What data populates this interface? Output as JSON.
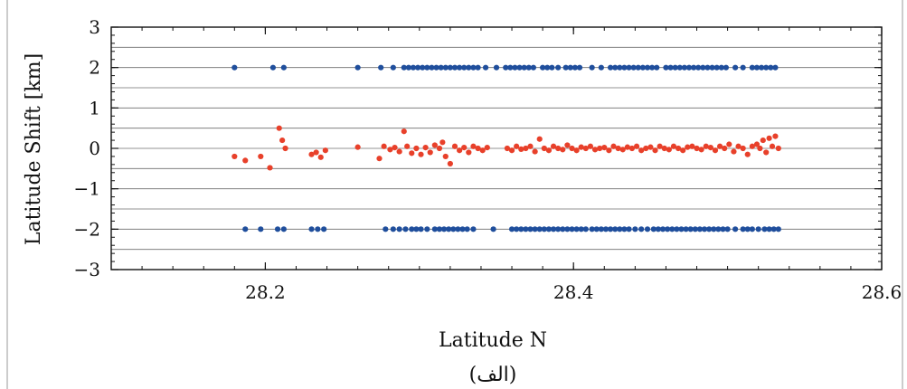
{
  "chart_data": {
    "type": "scatter",
    "title": "",
    "caption": "(الف)",
    "xlabel": "Latitude N",
    "ylabel": "Latitude Shift [km]",
    "xlim": [
      28.1,
      28.6
    ],
    "ylim": [
      -3,
      3
    ],
    "x_ticks": [
      28.2,
      28.4,
      28.6
    ],
    "x_tick_labels": [
      "28.2",
      "28.4",
      "28.6"
    ],
    "y_ticks": [
      -3,
      -2,
      -1,
      0,
      1,
      2,
      3
    ],
    "y_tick_labels": [
      "−3",
      "−2",
      "−1",
      "0",
      "1",
      "2",
      "3"
    ],
    "grid": true,
    "colors": {
      "blue": "#1f4e9c",
      "red": "#e8402a"
    },
    "series": [
      {
        "color": "#1f4e9c",
        "x": [
          28.18,
          28.205,
          28.212,
          28.26,
          28.275,
          28.283,
          28.29,
          28.293,
          28.296,
          28.299,
          28.302,
          28.305,
          28.308,
          28.311,
          28.314,
          28.317,
          28.32,
          28.323,
          28.326,
          28.329,
          28.332,
          28.335,
          28.338,
          28.343,
          28.35,
          28.356,
          28.359,
          28.362,
          28.365,
          28.368,
          28.371,
          28.374,
          28.38,
          28.383,
          28.386,
          28.39,
          28.395,
          28.398,
          28.401,
          28.404,
          28.412,
          28.418,
          28.424,
          28.427,
          28.43,
          28.433,
          28.436,
          28.439,
          28.442,
          28.445,
          28.448,
          28.451,
          28.454,
          28.46,
          28.463,
          28.466,
          28.469,
          28.472,
          28.475,
          28.478,
          28.481,
          28.484,
          28.487,
          28.49,
          28.493,
          28.496,
          28.499,
          28.505,
          28.51,
          28.516,
          28.519,
          28.522,
          28.525,
          28.528,
          28.531
        ],
        "y": [
          2,
          2,
          2,
          2,
          2,
          2,
          2,
          2,
          2,
          2,
          2,
          2,
          2,
          2,
          2,
          2,
          2,
          2,
          2,
          2,
          2,
          2,
          2,
          2,
          2,
          2,
          2,
          2,
          2,
          2,
          2,
          2,
          2,
          2,
          2,
          2,
          2,
          2,
          2,
          2,
          2,
          2,
          2,
          2,
          2,
          2,
          2,
          2,
          2,
          2,
          2,
          2,
          2,
          2,
          2,
          2,
          2,
          2,
          2,
          2,
          2,
          2,
          2,
          2,
          2,
          2,
          2,
          2,
          2,
          2,
          2,
          2,
          2,
          2,
          2
        ]
      },
      {
        "color": "#1f4e9c",
        "x": [
          28.187,
          28.197,
          28.208,
          28.212,
          28.23,
          28.234,
          28.238,
          28.278,
          28.283,
          28.287,
          28.291,
          28.295,
          28.298,
          28.301,
          28.305,
          28.31,
          28.313,
          28.316,
          28.319,
          28.322,
          28.325,
          28.328,
          28.331,
          28.335,
          28.348,
          28.36,
          28.363,
          28.366,
          28.369,
          28.372,
          28.375,
          28.378,
          28.381,
          28.384,
          28.387,
          28.39,
          28.393,
          28.396,
          28.399,
          28.402,
          28.405,
          28.408,
          28.412,
          28.415,
          28.418,
          28.421,
          28.424,
          28.427,
          28.43,
          28.433,
          28.436,
          28.44,
          28.444,
          28.448,
          28.452,
          28.455,
          28.458,
          28.461,
          28.464,
          28.467,
          28.47,
          28.473,
          28.476,
          28.479,
          28.482,
          28.485,
          28.488,
          28.491,
          28.494,
          28.497,
          28.5,
          28.505,
          28.51,
          28.513,
          28.516,
          28.52,
          28.524,
          28.527,
          28.53,
          28.533
        ],
        "y": [
          -2,
          -2,
          -2,
          -2,
          -2,
          -2,
          -2,
          -2,
          -2,
          -2,
          -2,
          -2,
          -2,
          -2,
          -2,
          -2,
          -2,
          -2,
          -2,
          -2,
          -2,
          -2,
          -2,
          -2,
          -2,
          -2,
          -2,
          -2,
          -2,
          -2,
          -2,
          -2,
          -2,
          -2,
          -2,
          -2,
          -2,
          -2,
          -2,
          -2,
          -2,
          -2,
          -2,
          -2,
          -2,
          -2,
          -2,
          -2,
          -2,
          -2,
          -2,
          -2,
          -2,
          -2,
          -2,
          -2,
          -2,
          -2,
          -2,
          -2,
          -2,
          -2,
          -2,
          -2,
          -2,
          -2,
          -2,
          -2,
          -2,
          -2,
          -2,
          -2,
          -2,
          -2,
          -2,
          -2,
          -2,
          -2,
          -2,
          -2
        ]
      },
      {
        "color": "#e8402a",
        "x": [
          28.18,
          28.187,
          28.197,
          28.203,
          28.209,
          28.211,
          28.213,
          28.23,
          28.233,
          28.236,
          28.239,
          28.26,
          28.274,
          28.277,
          28.281,
          28.284,
          28.287,
          28.29,
          28.292,
          28.295,
          28.298,
          28.301,
          28.304,
          28.307,
          28.31,
          28.313,
          28.315,
          28.317,
          28.32,
          28.323,
          28.326,
          28.329,
          28.332,
          28.335,
          28.338,
          28.341,
          28.344,
          28.357,
          28.36,
          28.363,
          28.366,
          28.369,
          28.372,
          28.375,
          28.378,
          28.381,
          28.384,
          28.387,
          28.39,
          28.393,
          28.396,
          28.399,
          28.402,
          28.405,
          28.408,
          28.411,
          28.414,
          28.417,
          28.42,
          28.423,
          28.426,
          28.429,
          28.432,
          28.435,
          28.438,
          28.441,
          28.444,
          28.447,
          28.45,
          28.453,
          28.456,
          28.459,
          28.462,
          28.465,
          28.468,
          28.471,
          28.474,
          28.477,
          28.48,
          28.483,
          28.486,
          28.489,
          28.492,
          28.495,
          28.498,
          28.501,
          28.504,
          28.507,
          28.51,
          28.513,
          28.516,
          28.519,
          28.521,
          28.523,
          28.525,
          28.527,
          28.529,
          28.531,
          28.533
        ],
        "y": [
          -0.2,
          -0.3,
          -0.2,
          -0.48,
          0.5,
          0.2,
          0.0,
          -0.15,
          -0.1,
          -0.22,
          -0.05,
          0.03,
          -0.25,
          0.05,
          -0.03,
          0.02,
          -0.08,
          0.42,
          0.05,
          -0.12,
          0.0,
          -0.15,
          0.02,
          -0.1,
          0.08,
          0.0,
          0.15,
          -0.2,
          -0.38,
          0.05,
          -0.05,
          0.02,
          -0.1,
          0.05,
          0.0,
          -0.05,
          0.02,
          0.0,
          -0.05,
          0.05,
          -0.02,
          0.0,
          0.05,
          -0.08,
          0.23,
          0.0,
          -0.05,
          0.05,
          0.0,
          -0.03,
          0.08,
          0.0,
          -0.05,
          0.03,
          0.0,
          0.05,
          -0.03,
          0.0,
          0.02,
          -0.05,
          0.05,
          0.0,
          -0.03,
          0.03,
          0.0,
          0.05,
          -0.05,
          0.0,
          0.03,
          -0.05,
          0.05,
          0.0,
          -0.03,
          0.05,
          0.0,
          -0.05,
          0.03,
          0.05,
          0.0,
          -0.03,
          0.05,
          0.02,
          -0.05,
          0.05,
          0.0,
          0.1,
          -0.08,
          0.05,
          0.0,
          -0.15,
          0.05,
          0.1,
          0.0,
          0.2,
          -0.1,
          0.25,
          0.05,
          0.3,
          0.0
        ]
      }
    ]
  }
}
